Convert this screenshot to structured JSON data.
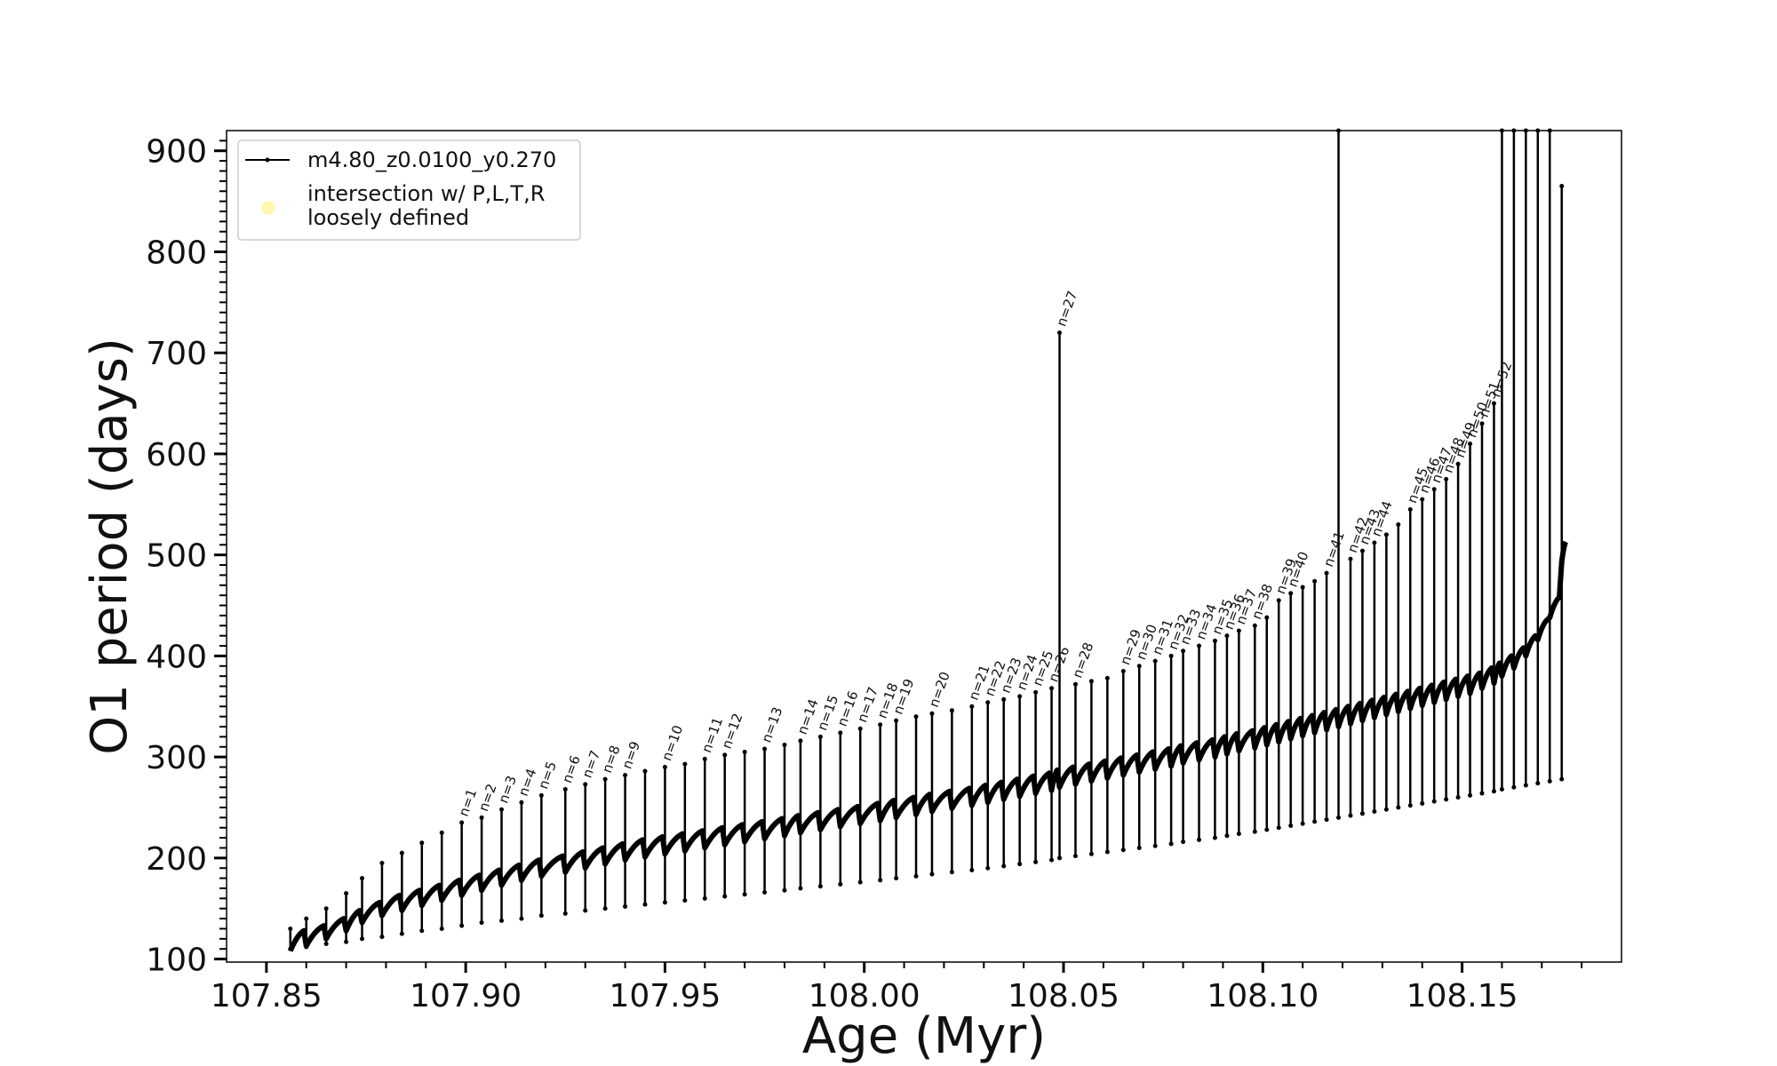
{
  "chart_data": {
    "type": "line",
    "xlabel": "Age (Myr)",
    "ylabel": "O1 period (days)",
    "xlim": [
      107.84,
      108.19
    ],
    "ylim": [
      97,
      920
    ],
    "x_ticks": [
      107.85,
      107.9,
      107.95,
      108.0,
      108.05,
      108.1,
      108.15
    ],
    "x_tick_labels": [
      "107.85",
      "107.90",
      "107.95",
      "108.00",
      "108.05",
      "108.10",
      "108.15"
    ],
    "y_ticks": [
      100,
      200,
      300,
      400,
      500,
      600,
      700,
      800,
      900
    ],
    "y_tick_labels": [
      "100",
      "200",
      "300",
      "400",
      "500",
      "600",
      "700",
      "800",
      "900"
    ],
    "grid": false,
    "legend_position": "top-left",
    "legend": [
      {
        "label": "m4.80_z0.0100_y0.270",
        "marker": "line-with-dot",
        "color": "#000000"
      },
      {
        "label": "intersection w/ P,L,T,R",
        "label_line2": "loosely defined",
        "marker": "circle",
        "color": "#fff7b0"
      }
    ],
    "series": [
      {
        "name": "m4.80_z0.0100_y0.270",
        "color": "#000000",
        "pulses": [
          {
            "x": 107.856,
            "low": 110,
            "high": 130,
            "base": 120
          },
          {
            "x": 107.86,
            "low": 112,
            "high": 140,
            "base": 125
          },
          {
            "x": 107.865,
            "low": 115,
            "high": 150,
            "base": 132
          },
          {
            "x": 107.87,
            "low": 117,
            "high": 165,
            "base": 140
          },
          {
            "x": 107.874,
            "low": 120,
            "high": 180,
            "base": 148
          },
          {
            "x": 107.879,
            "low": 122,
            "high": 195,
            "base": 155
          },
          {
            "x": 107.884,
            "low": 125,
            "high": 205,
            "base": 160
          },
          {
            "x": 107.889,
            "low": 128,
            "high": 215,
            "base": 165
          },
          {
            "x": 107.894,
            "low": 130,
            "high": 225,
            "base": 170
          },
          {
            "x": 107.899,
            "low": 133,
            "high": 235,
            "base": 175,
            "label": "n=1"
          },
          {
            "x": 107.904,
            "low": 136,
            "high": 240,
            "base": 180,
            "label": "n=2"
          },
          {
            "x": 107.909,
            "low": 138,
            "high": 248,
            "base": 185,
            "label": "n=3"
          },
          {
            "x": 107.914,
            "low": 140,
            "high": 255,
            "base": 190,
            "label": "n=4"
          },
          {
            "x": 107.919,
            "low": 143,
            "high": 262,
            "base": 194,
            "label": "n=5"
          },
          {
            "x": 107.925,
            "low": 145,
            "high": 268,
            "base": 198,
            "label": "n=6"
          },
          {
            "x": 107.93,
            "low": 148,
            "high": 273,
            "base": 202,
            "label": "n=7"
          },
          {
            "x": 107.935,
            "low": 150,
            "high": 278,
            "base": 206,
            "label": "n=8"
          },
          {
            "x": 107.94,
            "low": 152,
            "high": 282,
            "base": 210,
            "label": "n=9"
          },
          {
            "x": 107.945,
            "low": 154,
            "high": 286,
            "base": 213
          },
          {
            "x": 107.95,
            "low": 156,
            "high": 290,
            "base": 216,
            "label": "n=10"
          },
          {
            "x": 107.955,
            "low": 158,
            "high": 293,
            "base": 219
          },
          {
            "x": 107.96,
            "low": 160,
            "high": 298,
            "base": 222,
            "label": "n=11"
          },
          {
            "x": 107.965,
            "low": 162,
            "high": 302,
            "base": 225,
            "label": "n=12"
          },
          {
            "x": 107.97,
            "low": 164,
            "high": 305,
            "base": 228
          },
          {
            "x": 107.975,
            "low": 166,
            "high": 308,
            "base": 231,
            "label": "n=13"
          },
          {
            "x": 107.98,
            "low": 168,
            "high": 312,
            "base": 234
          },
          {
            "x": 107.984,
            "low": 170,
            "high": 316,
            "base": 237,
            "label": "n=14"
          },
          {
            "x": 107.989,
            "low": 172,
            "high": 320,
            "base": 240,
            "label": "n=15"
          },
          {
            "x": 107.994,
            "low": 174,
            "high": 324,
            "base": 243,
            "label": "n=16"
          },
          {
            "x": 107.999,
            "low": 176,
            "high": 328,
            "base": 246,
            "label": "n=17"
          },
          {
            "x": 108.004,
            "low": 178,
            "high": 332,
            "base": 249,
            "label": "n=18"
          },
          {
            "x": 108.008,
            "low": 180,
            "high": 336,
            "base": 252,
            "label": "n=19"
          },
          {
            "x": 108.013,
            "low": 182,
            "high": 340,
            "base": 255
          },
          {
            "x": 108.017,
            "low": 184,
            "high": 343,
            "base": 258,
            "label": "n=20"
          },
          {
            "x": 108.022,
            "low": 186,
            "high": 346,
            "base": 261
          },
          {
            "x": 108.027,
            "low": 188,
            "high": 350,
            "base": 264,
            "label": "n=21"
          },
          {
            "x": 108.031,
            "low": 190,
            "high": 354,
            "base": 267,
            "label": "n=22"
          },
          {
            "x": 108.035,
            "low": 192,
            "high": 357,
            "base": 270,
            "label": "n=23"
          },
          {
            "x": 108.039,
            "low": 194,
            "high": 360,
            "base": 273,
            "label": "n=24"
          },
          {
            "x": 108.043,
            "low": 196,
            "high": 364,
            "base": 276,
            "label": "n=25"
          },
          {
            "x": 108.047,
            "low": 198,
            "high": 368,
            "base": 279,
            "label": "n=26"
          },
          {
            "x": 108.049,
            "low": 200,
            "high": 720,
            "base": 282,
            "label": "n=27"
          },
          {
            "x": 108.053,
            "low": 202,
            "high": 372,
            "base": 285,
            "label": "n=28"
          },
          {
            "x": 108.057,
            "low": 204,
            "high": 375,
            "base": 288
          },
          {
            "x": 108.061,
            "low": 206,
            "high": 378,
            "base": 291
          },
          {
            "x": 108.065,
            "low": 208,
            "high": 385,
            "base": 294,
            "label": "n=29"
          },
          {
            "x": 108.069,
            "low": 210,
            "high": 390,
            "base": 297,
            "label": "n=30"
          },
          {
            "x": 108.073,
            "low": 212,
            "high": 395,
            "base": 300,
            "label": "n=31"
          },
          {
            "x": 108.077,
            "low": 214,
            "high": 400,
            "base": 303,
            "label": "n=32"
          },
          {
            "x": 108.08,
            "low": 216,
            "high": 405,
            "base": 306,
            "label": "n=33"
          },
          {
            "x": 108.084,
            "low": 218,
            "high": 410,
            "base": 309,
            "label": "n=34"
          },
          {
            "x": 108.088,
            "low": 220,
            "high": 415,
            "base": 312,
            "label": "n=35"
          },
          {
            "x": 108.091,
            "low": 222,
            "high": 420,
            "base": 315,
            "label": "n=36"
          },
          {
            "x": 108.094,
            "low": 224,
            "high": 425,
            "base": 318,
            "label": "n=37"
          },
          {
            "x": 108.098,
            "low": 226,
            "high": 430,
            "base": 321,
            "label": "n=38"
          },
          {
            "x": 108.101,
            "low": 228,
            "high": 438,
            "base": 324
          },
          {
            "x": 108.104,
            "low": 230,
            "high": 455,
            "base": 327,
            "label": "n=39"
          },
          {
            "x": 108.107,
            "low": 232,
            "high": 462,
            "base": 330,
            "label": "n=40"
          },
          {
            "x": 108.11,
            "low": 234,
            "high": 468,
            "base": 333
          },
          {
            "x": 108.113,
            "low": 236,
            "high": 474,
            "base": 336
          },
          {
            "x": 108.116,
            "low": 238,
            "high": 482,
            "base": 339,
            "label": "n=41"
          },
          {
            "x": 108.119,
            "low": 240,
            "high": 920,
            "base": 342
          },
          {
            "x": 108.122,
            "low": 242,
            "high": 496,
            "base": 345,
            "label": "n=42"
          },
          {
            "x": 108.125,
            "low": 244,
            "high": 504,
            "base": 348,
            "label": "n=43"
          },
          {
            "x": 108.128,
            "low": 246,
            "high": 512,
            "base": 351,
            "label": "n=44"
          },
          {
            "x": 108.131,
            "low": 248,
            "high": 520,
            "base": 354
          },
          {
            "x": 108.134,
            "low": 250,
            "high": 530,
            "base": 357
          },
          {
            "x": 108.137,
            "low": 252,
            "high": 545,
            "base": 360,
            "label": "n=45"
          },
          {
            "x": 108.14,
            "low": 254,
            "high": 555,
            "base": 363,
            "label": "n=46"
          },
          {
            "x": 108.143,
            "low": 256,
            "high": 565,
            "base": 366,
            "label": "n=47"
          },
          {
            "x": 108.146,
            "low": 258,
            "high": 575,
            "base": 369,
            "label": "n=48"
          },
          {
            "x": 108.149,
            "low": 260,
            "high": 590,
            "base": 372,
            "label": "n=49"
          },
          {
            "x": 108.152,
            "low": 262,
            "high": 610,
            "base": 375,
            "label": "n=50"
          },
          {
            "x": 108.155,
            "low": 264,
            "high": 630,
            "base": 380,
            "label": "n=51"
          },
          {
            "x": 108.158,
            "low": 266,
            "high": 650,
            "base": 385,
            "label": "n=52"
          },
          {
            "x": 108.16,
            "low": 268,
            "high": 920,
            "base": 392
          },
          {
            "x": 108.163,
            "low": 270,
            "high": 920,
            "base": 400
          },
          {
            "x": 108.166,
            "low": 272,
            "high": 920,
            "base": 412
          },
          {
            "x": 108.169,
            "low": 274,
            "high": 920,
            "base": 428
          },
          {
            "x": 108.172,
            "low": 276,
            "high": 920,
            "base": 450
          },
          {
            "x": 108.175,
            "low": 278,
            "high": 865,
            "base": 505
          }
        ]
      }
    ]
  }
}
